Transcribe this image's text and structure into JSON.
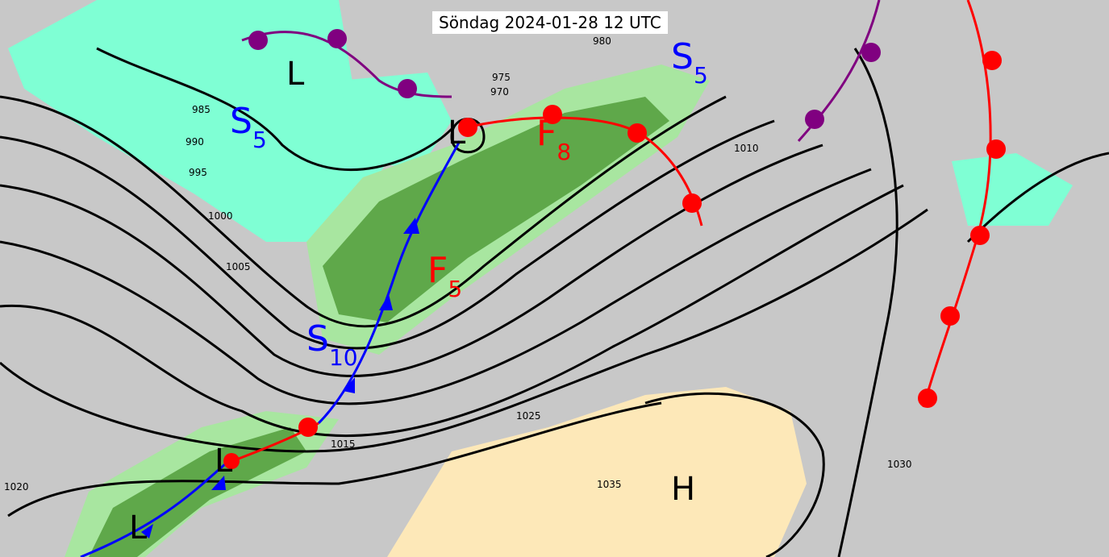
{
  "title": "Söndag 2024-01-28 12 UTC",
  "colors": {
    "background": "#c8c8c8",
    "precip_light": "#7fffd4",
    "precip_green_light": "#a8e6a0",
    "precip_green_dark": "#5fa84a",
    "high_area": "#fde8b8",
    "cold_front": "#0000ff",
    "warm_front": "#ff0000",
    "occluded_front": "#800080",
    "isobar": "#000000"
  },
  "isobar_labels": [
    "970",
    "975",
    "980",
    "985",
    "990",
    "995",
    "1000",
    "1005",
    "1010",
    "1015",
    "1020",
    "1025",
    "1030",
    "1035"
  ],
  "pressure_systems": [
    {
      "type": "L",
      "label": "L"
    },
    {
      "type": "L",
      "label": "L"
    },
    {
      "type": "L",
      "label": "L"
    },
    {
      "type": "L",
      "label": "L"
    },
    {
      "type": "H",
      "label": "H"
    }
  ],
  "front_labels": [
    {
      "letter": "S",
      "sub": "5",
      "color": "#0000ff"
    },
    {
      "letter": "S",
      "sub": "5",
      "color": "#0000ff"
    },
    {
      "letter": "S",
      "sub": "10",
      "color": "#0000ff"
    },
    {
      "letter": "F",
      "sub": "8",
      "color": "#ff0000"
    },
    {
      "letter": "F",
      "sub": "5",
      "color": "#ff0000"
    }
  ]
}
